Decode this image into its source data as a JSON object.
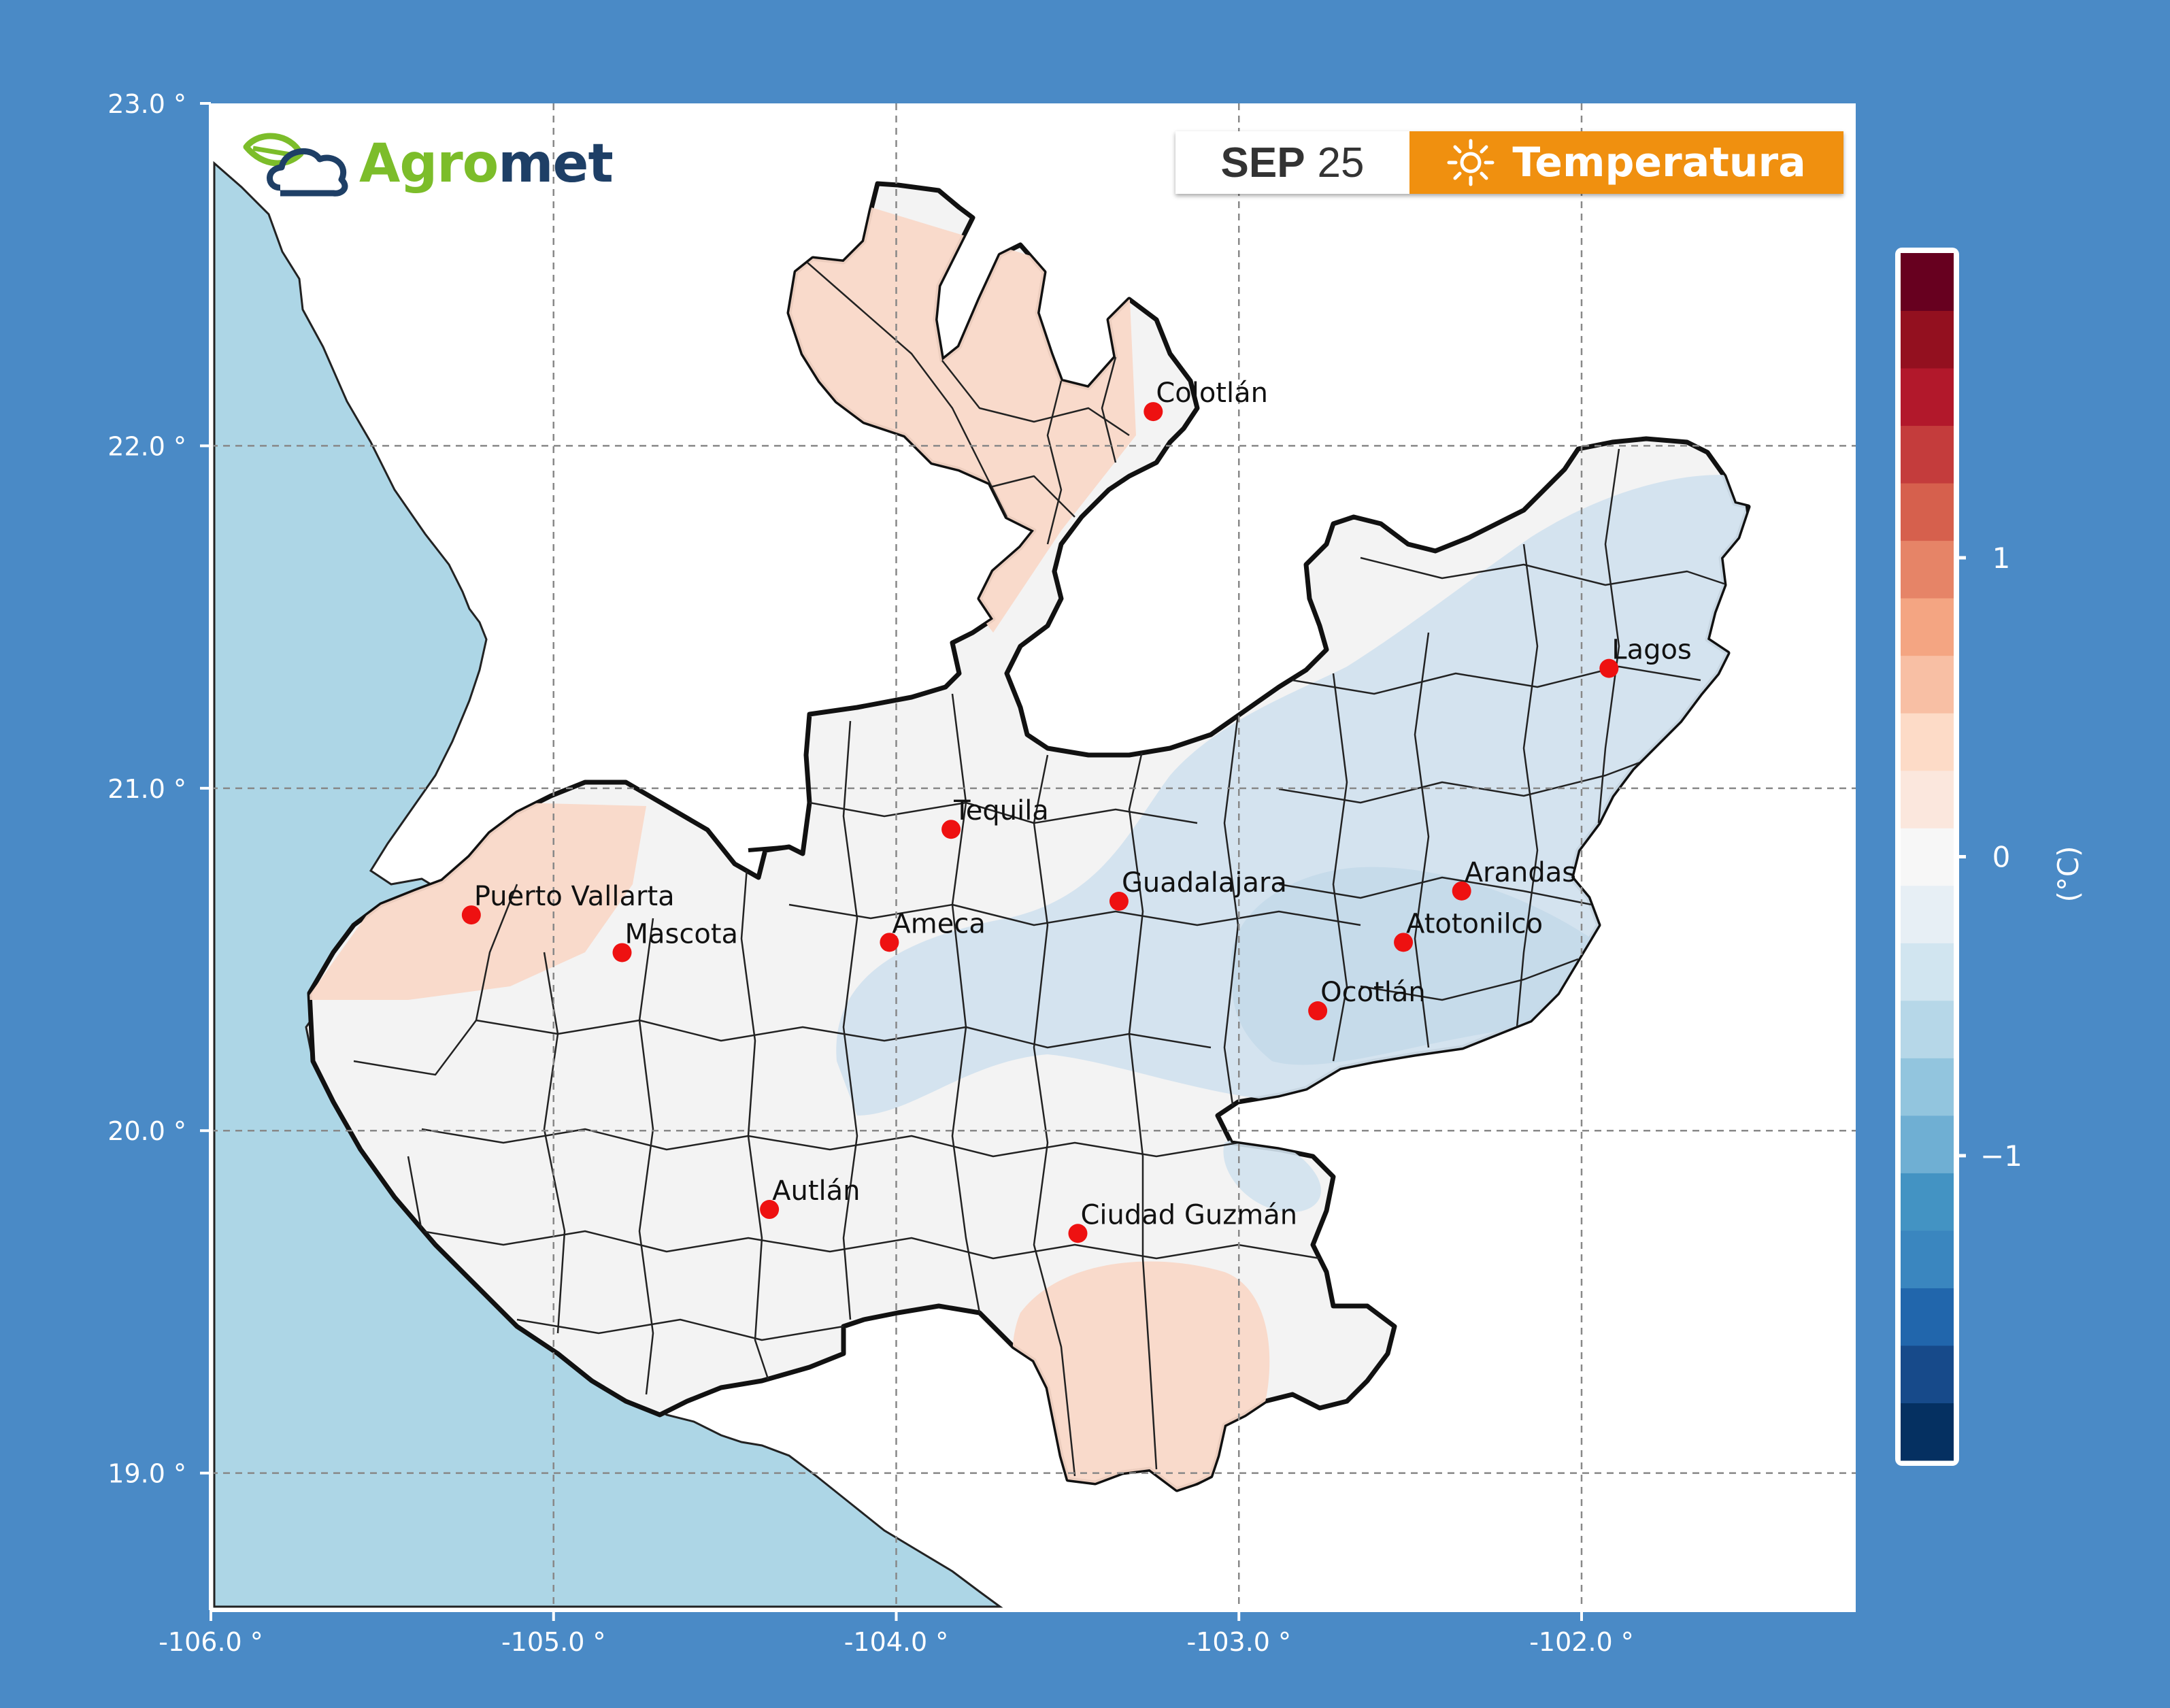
{
  "header": {
    "date_month": "SEP",
    "date_day": "25",
    "variable_label": "Temperatura",
    "variable_icon": "sun-icon"
  },
  "logo": {
    "text_part1": "Agro",
    "text_part2": "met",
    "icon": "leaf-cloud-icon"
  },
  "map": {
    "axes": {
      "x_ticks": [
        "-106.0 °",
        "-105.0 °",
        "-104.0 °",
        "-103.0 °",
        "-102.0 °"
      ],
      "y_ticks": [
        "23.0 °",
        "22.0 °",
        "21.0 °",
        "20.0 °",
        "19.0 °"
      ],
      "lon_range": [
        -106.0,
        -101.2
      ],
      "lat_range": [
        18.6,
        23.0
      ]
    },
    "cities": [
      {
        "name": "Colotlán",
        "lon": -103.25,
        "lat": 22.1
      },
      {
        "name": "Lagos",
        "lon": -101.92,
        "lat": 21.35
      },
      {
        "name": "Tequila",
        "lon": -103.84,
        "lat": 20.88
      },
      {
        "name": "Guadalajara",
        "lon": -103.35,
        "lat": 20.67
      },
      {
        "name": "Arandas",
        "lon": -102.35,
        "lat": 20.7
      },
      {
        "name": "Puerto Vallarta",
        "lon": -105.24,
        "lat": 20.63
      },
      {
        "name": "Mascota",
        "lon": -104.8,
        "lat": 20.52
      },
      {
        "name": "Ameca",
        "lon": -104.02,
        "lat": 20.55
      },
      {
        "name": "Atotonilco",
        "lon": -102.52,
        "lat": 20.55
      },
      {
        "name": "Ocotlán",
        "lon": -102.77,
        "lat": 20.35
      },
      {
        "name": "Autlán",
        "lon": -104.37,
        "lat": 19.77
      },
      {
        "name": "Ciudad Guzmán",
        "lon": -103.47,
        "lat": 19.7
      }
    ],
    "colors": {
      "background": "#4a8ac6",
      "ocean": "#add6e6",
      "land": "#ffffff",
      "neutral_fill": "#f3f3f3",
      "warm_fill": "#f9d8c8",
      "cool_fill": "#d2e2ee",
      "cool_fill_2": "#c4d9e9",
      "city_marker": "#ee1111"
    }
  },
  "colorbar": {
    "label": "(°C)",
    "ticks": [
      {
        "value": 1,
        "label": "1"
      },
      {
        "value": 0,
        "label": "0"
      },
      {
        "value": -1,
        "label": "−1"
      }
    ],
    "colors": [
      "#053061",
      "#174a8a",
      "#2166ac",
      "#3a86bf",
      "#4393c3",
      "#6fafd3",
      "#92c5de",
      "#b6d7e8",
      "#d1e5f0",
      "#e7eff5",
      "#f7f7f7",
      "#fbe7dd",
      "#fddbc7",
      "#f8bfa4",
      "#f4a582",
      "#e68467",
      "#d6604d",
      "#c43c3c",
      "#b2182b",
      "#93101f",
      "#67001f"
    ]
  }
}
